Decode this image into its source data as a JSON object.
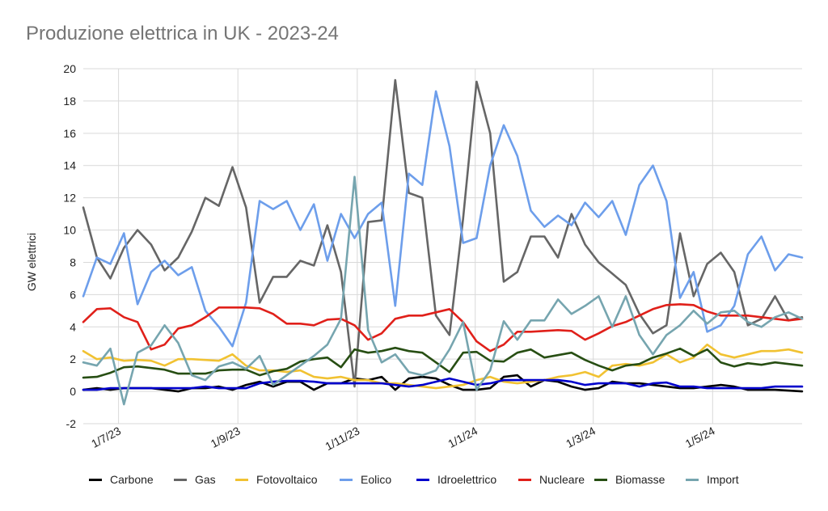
{
  "chart_data": {
    "type": "line",
    "title": "Produzione elettrica in UK - 2023-24",
    "xlabel": "",
    "ylabel": "GW elettrici",
    "ylim": [
      -2,
      20
    ],
    "yticks": [
      -2,
      0,
      2,
      4,
      6,
      8,
      10,
      12,
      14,
      16,
      18,
      20
    ],
    "xtick_labels": [
      "1/7/23",
      "1/9/23",
      "1/11/23",
      "1/1/24",
      "1/3/24",
      "1/5/24"
    ],
    "grid": true,
    "legend_position": "bottom",
    "n_points": 54,
    "series": [
      {
        "name": "Carbone",
        "color": "#000000",
        "values": [
          0.1,
          0.2,
          0.1,
          0.2,
          0.2,
          0.2,
          0.1,
          0.0,
          0.2,
          0.2,
          0.3,
          0.1,
          0.4,
          0.6,
          0.3,
          0.6,
          0.6,
          0.1,
          0.5,
          0.5,
          0.8,
          0.7,
          0.9,
          0.1,
          0.8,
          0.9,
          0.8,
          0.4,
          0.1,
          0.1,
          0.2,
          0.9,
          1.0,
          0.3,
          0.7,
          0.6,
          0.3,
          0.1,
          0.2,
          0.6,
          0.5,
          0.5,
          0.4,
          0.3,
          0.2,
          0.2,
          0.3,
          0.4,
          0.3,
          0.1,
          0.1,
          0.1,
          0.05,
          0.0
        ]
      },
      {
        "name": "Gas",
        "color": "#666666",
        "values": [
          11.4,
          8.3,
          7.0,
          8.9,
          10.0,
          9.1,
          7.5,
          8.3,
          9.9,
          12.0,
          11.5,
          13.9,
          11.4,
          5.5,
          7.1,
          7.1,
          8.1,
          7.8,
          10.3,
          7.4,
          0.3,
          10.5,
          10.6,
          19.3,
          12.3,
          12.0,
          4.7,
          3.5,
          10.7,
          19.2,
          16.0,
          6.8,
          7.4,
          9.6,
          9.6,
          8.3,
          11.0,
          9.1,
          8.0,
          7.3,
          6.6,
          4.8,
          3.6,
          4.1,
          9.8,
          5.9,
          7.9,
          8.6,
          7.4,
          4.1,
          4.5,
          5.9,
          4.4,
          4.6
        ]
      },
      {
        "name": "Fotovoltaico",
        "color": "#F1C232",
        "values": [
          2.5,
          2.0,
          2.1,
          1.9,
          1.95,
          1.9,
          1.6,
          2.0,
          2.0,
          1.95,
          1.9,
          2.3,
          1.6,
          1.3,
          1.3,
          1.2,
          1.3,
          0.9,
          0.8,
          0.9,
          0.7,
          0.7,
          0.5,
          0.5,
          0.4,
          0.3,
          0.2,
          0.3,
          0.4,
          0.7,
          0.9,
          0.6,
          0.5,
          0.6,
          0.7,
          0.9,
          1.0,
          1.2,
          0.9,
          1.6,
          1.7,
          1.6,
          1.8,
          2.3,
          1.8,
          2.1,
          2.9,
          2.3,
          2.1,
          2.3,
          2.5,
          2.5,
          2.6,
          2.4
        ]
      },
      {
        "name": "Eolico",
        "color": "#6D9EEB",
        "values": [
          5.9,
          8.3,
          7.9,
          9.8,
          5.4,
          7.4,
          8.1,
          7.2,
          7.7,
          5.0,
          4.0,
          2.8,
          5.5,
          11.8,
          11.3,
          11.8,
          10.0,
          11.6,
          8.1,
          11.0,
          9.5,
          11.0,
          11.7,
          5.3,
          13.5,
          12.8,
          18.6,
          15.2,
          9.2,
          9.5,
          14.0,
          16.5,
          14.6,
          11.2,
          10.2,
          10.9,
          10.3,
          11.7,
          10.8,
          11.8,
          9.7,
          12.8,
          14.0,
          11.8,
          5.8,
          7.4,
          3.7,
          4.1,
          5.3,
          8.5,
          9.6,
          7.5,
          8.5,
          8.3
        ]
      },
      {
        "name": "Idroelettrico",
        "color": "#0000CC",
        "values": [
          0.1,
          0.1,
          0.2,
          0.2,
          0.2,
          0.2,
          0.2,
          0.2,
          0.2,
          0.3,
          0.2,
          0.2,
          0.2,
          0.5,
          0.6,
          0.65,
          0.65,
          0.6,
          0.5,
          0.5,
          0.5,
          0.5,
          0.5,
          0.4,
          0.3,
          0.4,
          0.6,
          0.8,
          0.6,
          0.4,
          0.5,
          0.7,
          0.7,
          0.7,
          0.7,
          0.7,
          0.6,
          0.4,
          0.5,
          0.5,
          0.5,
          0.3,
          0.5,
          0.55,
          0.3,
          0.3,
          0.2,
          0.2,
          0.2,
          0.2,
          0.2,
          0.3,
          0.3,
          0.3
        ]
      },
      {
        "name": "Nucleare",
        "color": "#E0201A",
        "values": [
          4.3,
          5.1,
          5.15,
          4.6,
          4.3,
          2.6,
          2.9,
          3.9,
          4.1,
          4.6,
          5.2,
          5.2,
          5.2,
          5.15,
          4.8,
          4.2,
          4.2,
          4.1,
          4.45,
          4.5,
          4.1,
          3.2,
          3.6,
          4.5,
          4.7,
          4.7,
          4.9,
          5.1,
          4.3,
          3.1,
          2.5,
          2.9,
          3.7,
          3.7,
          3.75,
          3.8,
          3.75,
          3.2,
          3.6,
          4.05,
          4.3,
          4.7,
          5.1,
          5.35,
          5.4,
          5.35,
          4.95,
          4.7,
          4.7,
          4.7,
          4.6,
          4.5,
          4.4,
          4.5
        ]
      },
      {
        "name": "Biomasse",
        "color": "#274E13",
        "values": [
          0.85,
          0.9,
          1.15,
          1.5,
          1.55,
          1.45,
          1.35,
          1.1,
          1.1,
          1.1,
          1.3,
          1.35,
          1.35,
          1.0,
          1.25,
          1.4,
          1.85,
          2.0,
          2.1,
          1.5,
          2.6,
          2.4,
          2.5,
          2.7,
          2.5,
          2.4,
          1.8,
          1.2,
          2.4,
          2.45,
          1.9,
          1.85,
          2.4,
          2.6,
          2.1,
          2.25,
          2.4,
          1.95,
          1.6,
          1.3,
          1.6,
          1.7,
          2.1,
          2.35,
          2.65,
          2.2,
          2.6,
          1.8,
          1.55,
          1.75,
          1.65,
          1.8,
          1.7,
          1.6
        ]
      },
      {
        "name": "Import",
        "color": "#76A5AF",
        "values": [
          1.8,
          1.6,
          2.65,
          -0.8,
          2.4,
          2.85,
          4.1,
          3.0,
          1.0,
          0.7,
          1.55,
          1.8,
          1.4,
          2.2,
          0.4,
          1.0,
          1.6,
          2.2,
          2.9,
          4.5,
          13.3,
          3.8,
          1.8,
          2.3,
          1.2,
          1.0,
          1.3,
          2.6,
          4.3,
          0.1,
          1.3,
          4.35,
          3.2,
          4.4,
          4.4,
          5.7,
          4.8,
          5.3,
          5.9,
          4.0,
          5.9,
          3.5,
          2.3,
          3.5,
          4.1,
          5.0,
          4.2,
          4.9,
          5.0,
          4.3,
          4.0,
          4.6,
          4.9,
          4.5
        ]
      }
    ]
  }
}
